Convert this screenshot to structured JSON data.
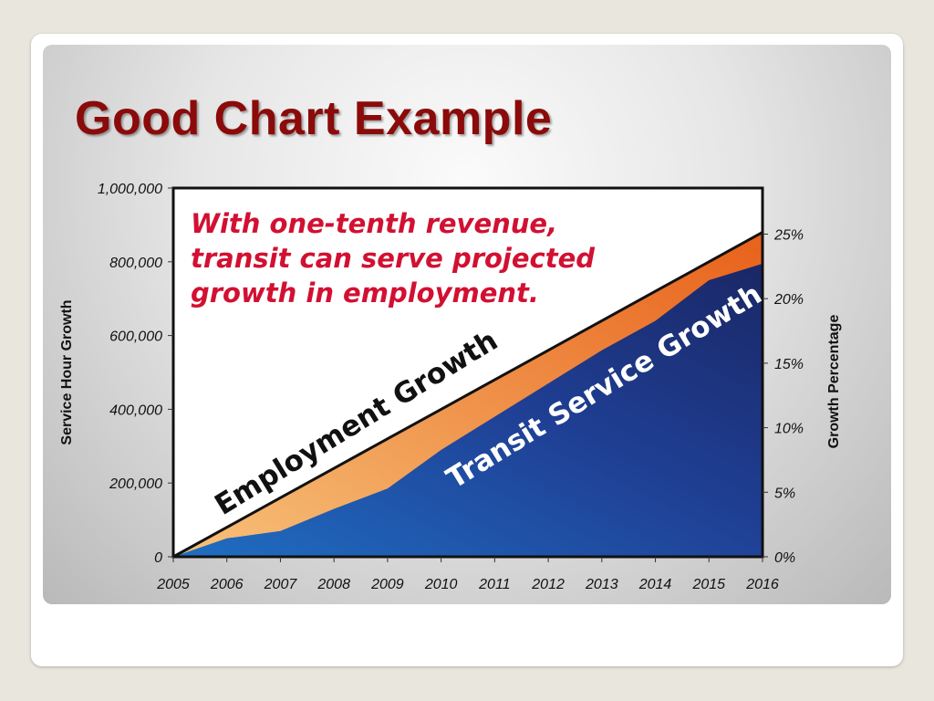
{
  "slide": {
    "title": "Good Chart Example"
  },
  "colors": {
    "title": "#8b0a0a",
    "callout": "#d21032",
    "employment_fill_start": "#f5b060",
    "employment_fill_end": "#e8611a",
    "transit_fill_start": "#1d64b5",
    "transit_fill_end": "#1c2d72"
  },
  "chart_data": {
    "type": "area",
    "x": [
      2005,
      2006,
      2007,
      2008,
      2009,
      2010,
      2011,
      2012,
      2013,
      2014,
      2015,
      2016
    ],
    "series": [
      {
        "name": "Employment Growth",
        "axis": "left",
        "values": [
          0,
          80000,
          160000,
          240000,
          320000,
          400000,
          480000,
          560000,
          640000,
          720000,
          800000,
          880000
        ]
      },
      {
        "name": "Transit Service Growth",
        "axis": "left",
        "values": [
          0,
          50000,
          70000,
          130000,
          185000,
          290000,
          380000,
          470000,
          560000,
          640000,
          750000,
          795000
        ]
      }
    ],
    "xlabel": "",
    "ylabel": "Service Hour Growth",
    "ylim": [
      0,
      1000000
    ],
    "y_ticks": [
      "0",
      "200,000",
      "400,000",
      "600,000",
      "800,000",
      "1,000,000"
    ],
    "y_tick_values": [
      0,
      200000,
      400000,
      600000,
      800000,
      1000000
    ],
    "y2label": "Growth Percentage",
    "y2lim": [
      0,
      0.2857
    ],
    "y2_ticks": [
      "0%",
      "5%",
      "10%",
      "15%",
      "20%",
      "25%"
    ],
    "y2_tick_values": [
      0,
      0.05,
      0.1,
      0.15,
      0.2,
      0.25
    ],
    "annotation": {
      "lines": [
        "With one-tenth revenue,",
        "transit can serve projected",
        "growth in employment."
      ]
    },
    "grid": false
  }
}
